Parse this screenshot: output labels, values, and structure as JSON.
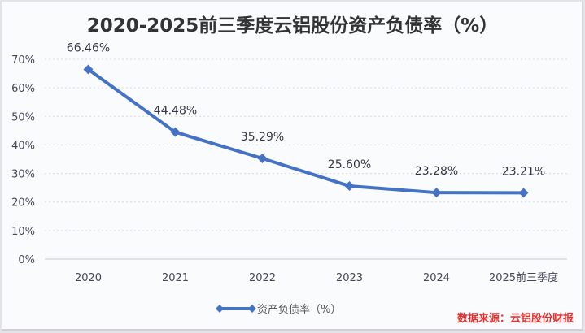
{
  "chart_data": {
    "type": "line",
    "title": "2020-2025前三季度云铝股份资产负债率（%）",
    "categories": [
      "2020",
      "2021",
      "2022",
      "2023",
      "2024",
      "2025前三季度"
    ],
    "series": [
      {
        "name": "资产负债率（%）",
        "values": [
          66.46,
          44.48,
          35.29,
          25.6,
          23.28,
          23.21
        ],
        "labels": [
          "66.46%",
          "44.48%",
          "35.29%",
          "25.60%",
          "23.28%",
          "23.21%"
        ],
        "color": "#4472c4"
      }
    ],
    "yticks": [
      "0%",
      "10%",
      "20%",
      "30%",
      "40%",
      "50%",
      "60%",
      "70%"
    ],
    "ytick_values": [
      0,
      10,
      20,
      30,
      40,
      50,
      60,
      70
    ],
    "ylim": [
      0,
      70
    ],
    "xlabel": "",
    "ylabel": "",
    "grid": true,
    "legend": "bottom-center"
  },
  "source_note": "数据来源：云铝股份财报",
  "colors": {
    "line": "#4472c4",
    "source": "#e03030",
    "grid": "#d8dae2"
  }
}
